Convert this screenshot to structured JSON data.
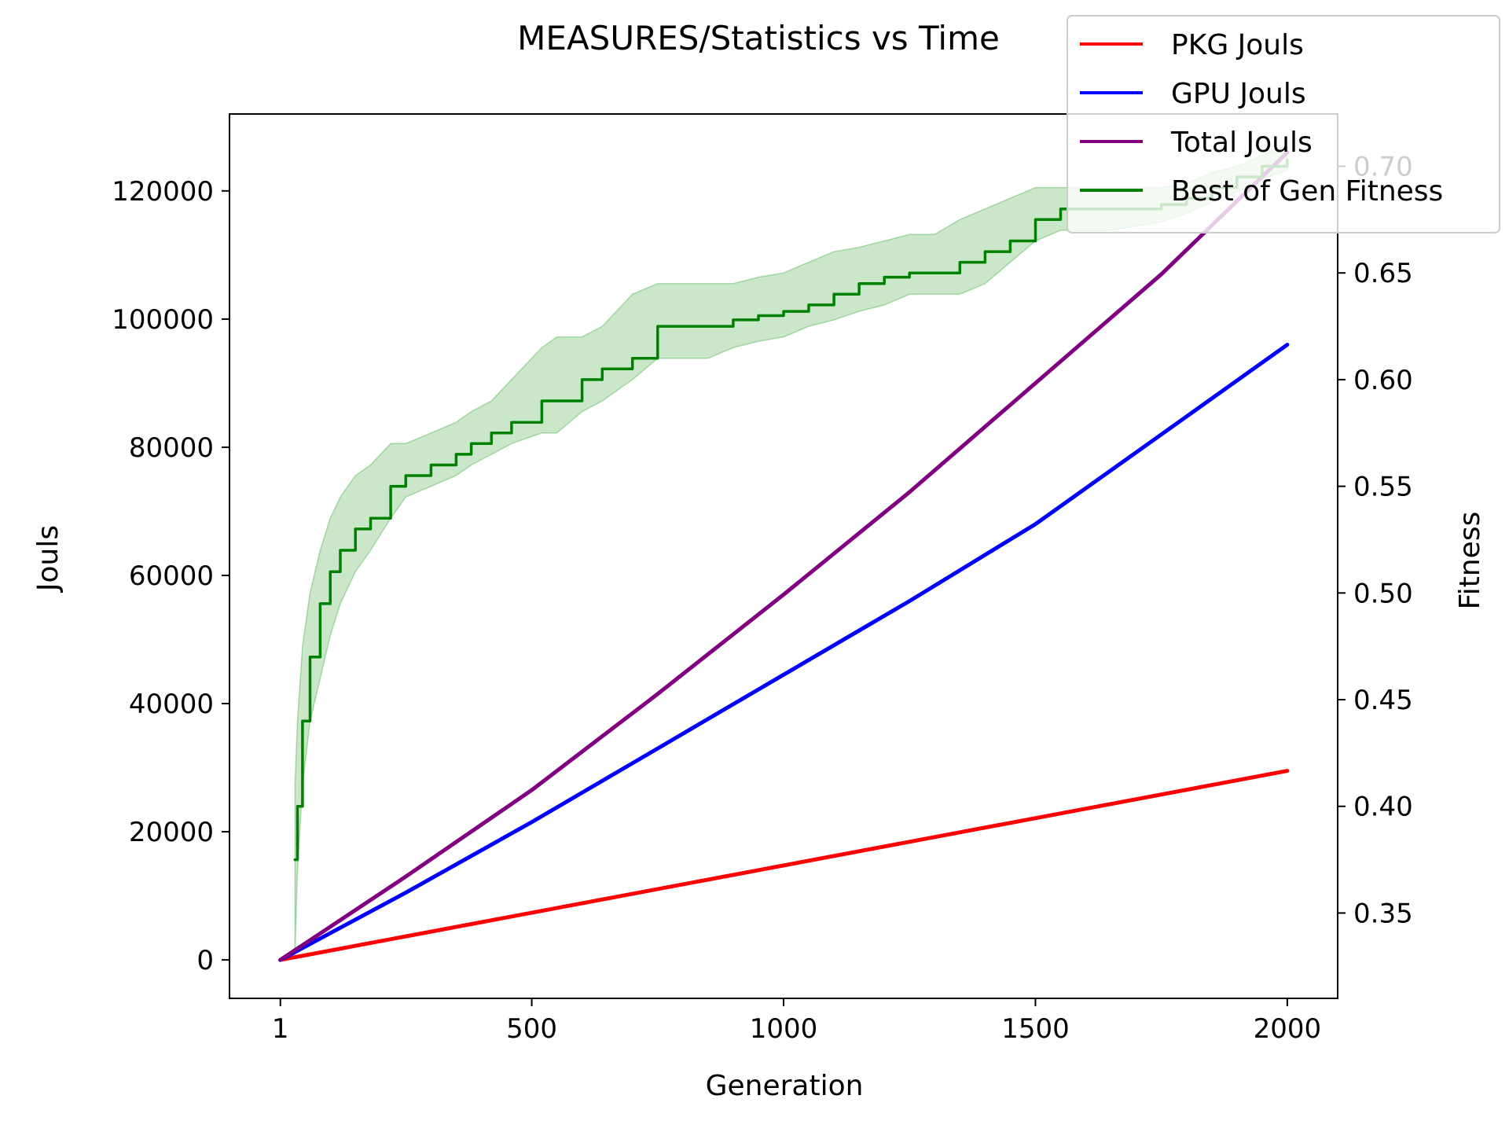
{
  "chart_data": {
    "type": "line",
    "title": "MEASURES/Statistics vs Time",
    "xlabel": "Generation",
    "ylabel_left": "Jouls",
    "ylabel_right": "Fitness",
    "xlim": [
      -100,
      2100
    ],
    "ylim_left": [
      -6000,
      132000
    ],
    "ylim_right": [
      0.31,
      0.7245
    ],
    "xticks": [
      1,
      500,
      1000,
      1500,
      2000
    ],
    "xtick_labels": [
      "1",
      "500",
      "1000",
      "1500",
      "2000"
    ],
    "yticks_left": [
      0,
      20000,
      40000,
      60000,
      80000,
      100000,
      120000
    ],
    "ytick_labels_left": [
      "0",
      "20000",
      "40000",
      "60000",
      "80000",
      "100000",
      "120000"
    ],
    "yticks_right": [
      0.35,
      0.4,
      0.45,
      0.5,
      0.55,
      0.6,
      0.65,
      0.7
    ],
    "ytick_labels_right": [
      "0.35",
      "0.40",
      "0.45",
      "0.50",
      "0.55",
      "0.60",
      "0.65",
      "0.70"
    ],
    "grid": false,
    "legend_position": "top-right",
    "series": [
      {
        "name": "PKG Jouls",
        "axis": "left",
        "color": "#ff0000",
        "x": [
          1,
          2000
        ],
        "y": [
          0,
          29500
        ]
      },
      {
        "name": "GPU Jouls",
        "axis": "left",
        "color": "#0000ff",
        "x": [
          1,
          250,
          500,
          750,
          1000,
          1250,
          1500,
          1750,
          2000
        ],
        "y": [
          0,
          10500,
          21500,
          33000,
          44500,
          56000,
          68000,
          82000,
          96000
        ]
      },
      {
        "name": "Total Jouls",
        "axis": "left",
        "color": "#800080",
        "x": [
          1,
          250,
          500,
          750,
          1000,
          1250,
          1500,
          1750,
          2000
        ],
        "y": [
          0,
          13000,
          26500,
          41500,
          57000,
          73000,
          90000,
          107000,
          126000
        ]
      },
      {
        "name": "Best of Gen Fitness",
        "axis": "right",
        "color": "#008000",
        "band_color": "#2ca02c",
        "x": [
          30,
          35,
          45,
          60,
          80,
          100,
          120,
          150,
          180,
          220,
          250,
          300,
          350,
          380,
          420,
          460,
          520,
          550,
          600,
          640,
          700,
          750,
          850,
          900,
          950,
          1000,
          1050,
          1100,
          1150,
          1200,
          1250,
          1300,
          1350,
          1400,
          1450,
          1500,
          1550,
          1650,
          1700,
          1750,
          1800,
          1850,
          1900,
          1950,
          2000
        ],
        "y": [
          0.375,
          0.4,
          0.44,
          0.47,
          0.495,
          0.51,
          0.52,
          0.53,
          0.535,
          0.55,
          0.555,
          0.56,
          0.565,
          0.57,
          0.575,
          0.58,
          0.59,
          0.59,
          0.6,
          0.605,
          0.61,
          0.625,
          0.625,
          0.628,
          0.63,
          0.632,
          0.635,
          0.64,
          0.645,
          0.648,
          0.65,
          0.65,
          0.655,
          0.66,
          0.665,
          0.675,
          0.68,
          0.68,
          0.68,
          0.682,
          0.685,
          0.69,
          0.695,
          0.7,
          0.703
        ],
        "lower": [
          0.33,
          0.37,
          0.41,
          0.44,
          0.46,
          0.48,
          0.495,
          0.51,
          0.52,
          0.535,
          0.545,
          0.55,
          0.555,
          0.56,
          0.565,
          0.57,
          0.575,
          0.575,
          0.585,
          0.59,
          0.6,
          0.61,
          0.61,
          0.615,
          0.618,
          0.62,
          0.625,
          0.628,
          0.632,
          0.635,
          0.64,
          0.64,
          0.64,
          0.645,
          0.655,
          0.665,
          0.67,
          0.67,
          0.672,
          0.674,
          0.678,
          0.683,
          0.688,
          0.694,
          0.698
        ],
        "upper": [
          0.41,
          0.44,
          0.475,
          0.5,
          0.52,
          0.535,
          0.545,
          0.555,
          0.56,
          0.57,
          0.57,
          0.575,
          0.58,
          0.585,
          0.59,
          0.6,
          0.615,
          0.62,
          0.62,
          0.625,
          0.64,
          0.645,
          0.645,
          0.645,
          0.648,
          0.65,
          0.655,
          0.66,
          0.662,
          0.665,
          0.668,
          0.668,
          0.675,
          0.68,
          0.685,
          0.69,
          0.69,
          0.69,
          0.69,
          0.69,
          0.692,
          0.697,
          0.7,
          0.705,
          0.71
        ]
      }
    ]
  }
}
